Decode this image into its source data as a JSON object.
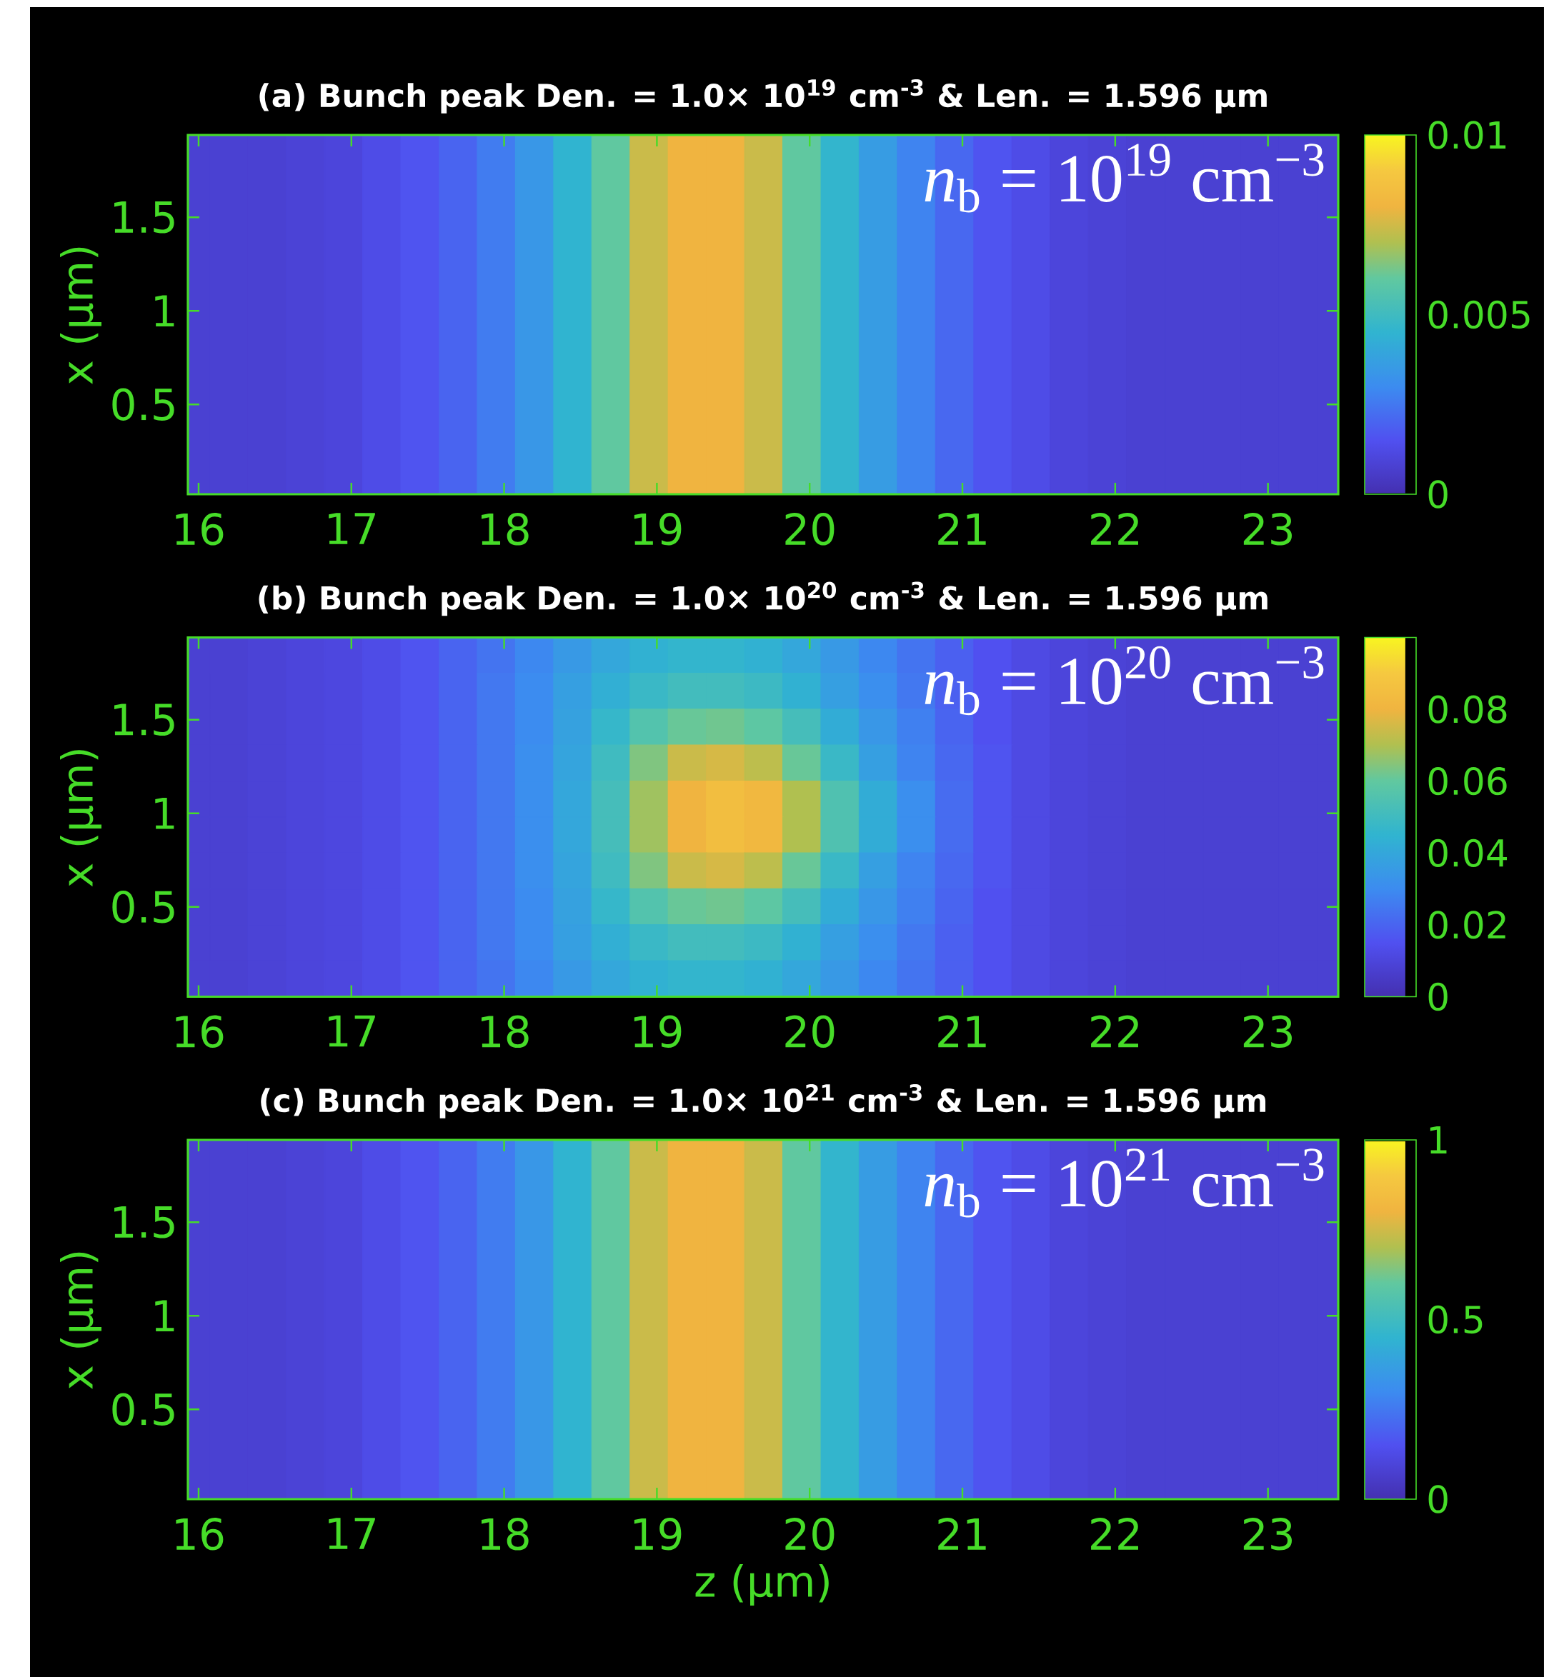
{
  "chart_data": [
    {
      "type": "heatmap",
      "title": "(a) Bunch peak Den. = 1.0× 10$^{19}$ cm$^{-3}$ & Len. = 1.596 μm",
      "ylabel": "x (μm)",
      "x": [
        15.95,
        16.2,
        16.45,
        16.7,
        16.95,
        17.2,
        17.45,
        17.7,
        17.95,
        18.2,
        18.45,
        18.7,
        18.95,
        19.2,
        19.45,
        19.7,
        19.95,
        20.2,
        20.45,
        20.7,
        20.95,
        21.2,
        21.45,
        21.7,
        21.95,
        22.2,
        22.45,
        22.7,
        22.95,
        23.2,
        23.45
      ],
      "cells": [
        [
          0.0008,
          0.0008,
          0.0008,
          0.0009,
          0.001,
          0.0013,
          0.0016,
          0.002,
          0.0026,
          0.0034,
          0.0045,
          0.006,
          0.0074,
          0.008,
          0.008,
          0.0074,
          0.006,
          0.0046,
          0.0036,
          0.0028,
          0.0021,
          0.0016,
          0.0013,
          0.001,
          0.0009,
          0.0008,
          0.0008,
          0.0008,
          0.0008,
          0.0008,
          0.0008
        ]
      ],
      "clim": [
        0,
        0.01
      ],
      "cticks": [
        0,
        0.005,
        0.01
      ],
      "xlim": [
        15.93,
        23.46
      ],
      "ylim": [
        0.02,
        1.94
      ],
      "xticks": [
        16,
        17,
        18,
        19,
        20,
        21,
        22,
        23
      ],
      "yticks": [
        0.5,
        1,
        1.5
      ],
      "annotations": [
        "*n*$_{b}$ = 10$^{19}$ cm$^{−3}$"
      ]
    },
    {
      "type": "heatmap",
      "title": "(b) Bunch peak Den. = 1.0× 10$^{20}$ cm$^{-3}$ & Len. = 1.596 μm",
      "ylabel": "x (μm)",
      "x": [
        15.95,
        16.2,
        16.45,
        16.7,
        16.95,
        17.2,
        17.45,
        17.7,
        17.95,
        18.2,
        18.45,
        18.7,
        18.95,
        19.2,
        19.45,
        19.7,
        19.95,
        20.2,
        20.45,
        20.7,
        20.95,
        21.2,
        21.45,
        21.7,
        21.95,
        22.2,
        22.45,
        22.7,
        22.95,
        23.2,
        23.45
      ],
      "y": [
        1.844,
        1.652,
        1.46,
        1.268,
        1.076,
        0.884,
        0.692,
        0.5,
        0.308,
        0.116
      ],
      "cells": [
        [
          0.008,
          0.008,
          0.009,
          0.01,
          0.011,
          0.013,
          0.016,
          0.02,
          0.024,
          0.029,
          0.035,
          0.04,
          0.044,
          0.046,
          0.046,
          0.044,
          0.04,
          0.035,
          0.029,
          0.024,
          0.019,
          0.015,
          0.012,
          0.01,
          0.009,
          0.008,
          0.008,
          0.008,
          0.008,
          0.008,
          0.008
        ],
        [
          0.008,
          0.008,
          0.009,
          0.01,
          0.011,
          0.013,
          0.016,
          0.02,
          0.025,
          0.03,
          0.037,
          0.043,
          0.048,
          0.051,
          0.051,
          0.049,
          0.044,
          0.037,
          0.031,
          0.025,
          0.019,
          0.015,
          0.012,
          0.01,
          0.009,
          0.008,
          0.008,
          0.008,
          0.008,
          0.008,
          0.008
        ],
        [
          0.008,
          0.008,
          0.009,
          0.01,
          0.011,
          0.013,
          0.016,
          0.02,
          0.025,
          0.03,
          0.038,
          0.047,
          0.056,
          0.061,
          0.062,
          0.059,
          0.052,
          0.042,
          0.034,
          0.027,
          0.02,
          0.015,
          0.012,
          0.01,
          0.009,
          0.008,
          0.008,
          0.008,
          0.008,
          0.008,
          0.008
        ],
        [
          0.008,
          0.008,
          0.009,
          0.01,
          0.011,
          0.013,
          0.016,
          0.02,
          0.025,
          0.031,
          0.039,
          0.05,
          0.064,
          0.074,
          0.076,
          0.072,
          0.061,
          0.048,
          0.037,
          0.028,
          0.021,
          0.016,
          0.012,
          0.01,
          0.009,
          0.008,
          0.008,
          0.008,
          0.008,
          0.008,
          0.008
        ],
        [
          0.008,
          0.008,
          0.009,
          0.01,
          0.011,
          0.013,
          0.016,
          0.02,
          0.025,
          0.031,
          0.04,
          0.052,
          0.068,
          0.08,
          0.085,
          0.082,
          0.07,
          0.055,
          0.042,
          0.031,
          0.022,
          0.016,
          0.012,
          0.01,
          0.009,
          0.008,
          0.008,
          0.008,
          0.008,
          0.008,
          0.008
        ],
        [
          0.008,
          0.008,
          0.009,
          0.01,
          0.011,
          0.013,
          0.016,
          0.02,
          0.025,
          0.031,
          0.04,
          0.052,
          0.068,
          0.08,
          0.085,
          0.082,
          0.07,
          0.055,
          0.042,
          0.031,
          0.022,
          0.016,
          0.012,
          0.01,
          0.009,
          0.008,
          0.008,
          0.008,
          0.008,
          0.008,
          0.008
        ],
        [
          0.008,
          0.008,
          0.009,
          0.01,
          0.011,
          0.013,
          0.016,
          0.02,
          0.025,
          0.031,
          0.039,
          0.05,
          0.064,
          0.074,
          0.076,
          0.072,
          0.061,
          0.048,
          0.037,
          0.028,
          0.021,
          0.016,
          0.012,
          0.01,
          0.009,
          0.008,
          0.008,
          0.008,
          0.008,
          0.008,
          0.008
        ],
        [
          0.008,
          0.008,
          0.009,
          0.01,
          0.011,
          0.013,
          0.016,
          0.02,
          0.025,
          0.03,
          0.038,
          0.047,
          0.056,
          0.061,
          0.062,
          0.059,
          0.052,
          0.042,
          0.034,
          0.027,
          0.02,
          0.015,
          0.012,
          0.01,
          0.009,
          0.008,
          0.008,
          0.008,
          0.008,
          0.008,
          0.008
        ],
        [
          0.008,
          0.008,
          0.009,
          0.01,
          0.011,
          0.013,
          0.016,
          0.02,
          0.025,
          0.03,
          0.037,
          0.043,
          0.048,
          0.051,
          0.051,
          0.049,
          0.044,
          0.037,
          0.031,
          0.025,
          0.019,
          0.015,
          0.012,
          0.01,
          0.009,
          0.008,
          0.008,
          0.008,
          0.008,
          0.008,
          0.008
        ],
        [
          0.008,
          0.008,
          0.009,
          0.01,
          0.011,
          0.013,
          0.016,
          0.02,
          0.024,
          0.029,
          0.035,
          0.04,
          0.044,
          0.046,
          0.046,
          0.044,
          0.04,
          0.035,
          0.029,
          0.024,
          0.019,
          0.015,
          0.012,
          0.01,
          0.009,
          0.008,
          0.008,
          0.008,
          0.008,
          0.008,
          0.008
        ]
      ],
      "clim": [
        0,
        0.1
      ],
      "cticks": [
        0,
        0.02,
        0.04,
        0.06,
        0.08
      ],
      "xlim": [
        15.93,
        23.46
      ],
      "ylim": [
        0.02,
        1.94
      ],
      "xticks": [
        16,
        17,
        18,
        19,
        20,
        21,
        22,
        23
      ],
      "yticks": [
        0.5,
        1,
        1.5
      ],
      "annotations": [
        "*n*$_{b}$ = 10$^{20}$ cm$^{−3}$"
      ]
    },
    {
      "type": "heatmap",
      "title": "(c) Bunch peak Den. = 1.0× 10$^{21}$ cm$^{-3}$ & Len. = 1.596 μm",
      "xlabel": "z (μm)",
      "ylabel": "x (μm)",
      "x": [
        15.95,
        16.2,
        16.45,
        16.7,
        16.95,
        17.2,
        17.45,
        17.7,
        17.95,
        18.2,
        18.45,
        18.7,
        18.95,
        19.2,
        19.45,
        19.7,
        19.95,
        20.2,
        20.45,
        20.7,
        20.95,
        21.2,
        21.45,
        21.7,
        21.95,
        22.2,
        22.45,
        22.7,
        22.95,
        23.2,
        23.45
      ],
      "cells": [
        [
          0.08,
          0.08,
          0.08,
          0.09,
          0.1,
          0.13,
          0.16,
          0.2,
          0.26,
          0.34,
          0.45,
          0.6,
          0.74,
          0.8,
          0.8,
          0.74,
          0.6,
          0.46,
          0.36,
          0.28,
          0.21,
          0.16,
          0.13,
          0.1,
          0.09,
          0.08,
          0.08,
          0.08,
          0.08,
          0.08,
          0.08
        ]
      ],
      "clim": [
        0,
        1
      ],
      "cticks": [
        0,
        0.5,
        1
      ],
      "xlim": [
        15.93,
        23.46
      ],
      "ylim": [
        0.02,
        1.94
      ],
      "xticks": [
        16,
        17,
        18,
        19,
        20,
        21,
        22,
        23
      ],
      "yticks": [
        0.5,
        1,
        1.5
      ],
      "annotations": [
        "*n*$_{b}$ = 10$^{21}$ cm$^{−3}$"
      ]
    }
  ]
}
